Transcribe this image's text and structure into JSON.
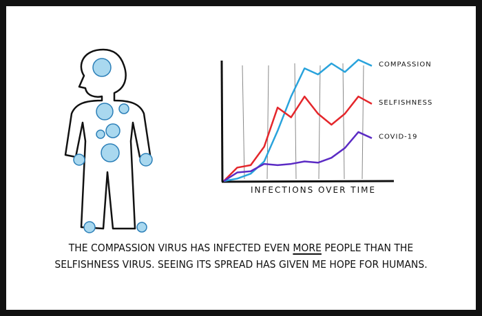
{
  "chart_data": {
    "type": "line",
    "xlabel": "INFECTIONS OVER TIME",
    "categories": [
      null,
      null,
      null,
      null,
      null,
      null,
      null,
      null,
      null,
      null,
      null,
      null
    ],
    "series": [
      {
        "name": "COMPASSION",
        "color": "#29a3dc",
        "values": [
          0,
          2,
          6,
          16,
          41,
          69,
          92,
          87,
          96,
          89,
          99,
          94
        ]
      },
      {
        "name": "SELFISHNESS",
        "color": "#e4262b",
        "values": [
          0,
          11,
          13,
          28,
          60,
          52,
          69,
          55,
          46,
          55,
          69,
          63
        ]
      },
      {
        "name": "COVID-19",
        "color": "#5b2bc4",
        "values": [
          0,
          7,
          8,
          14,
          13,
          14,
          16,
          15,
          19,
          27,
          40,
          35
        ]
      }
    ],
    "ylim": [
      0,
      100
    ]
  },
  "caption": {
    "line1": [
      "THE COMPASSION VIRUS HAS INFECTED EVEN",
      "MORE",
      "PEOPLE THAN THE"
    ],
    "line2": "SELFISHNESS VIRUS. SEEING ITS SPREAD HAS GIVEN ME HOPE FOR HUMANS."
  }
}
